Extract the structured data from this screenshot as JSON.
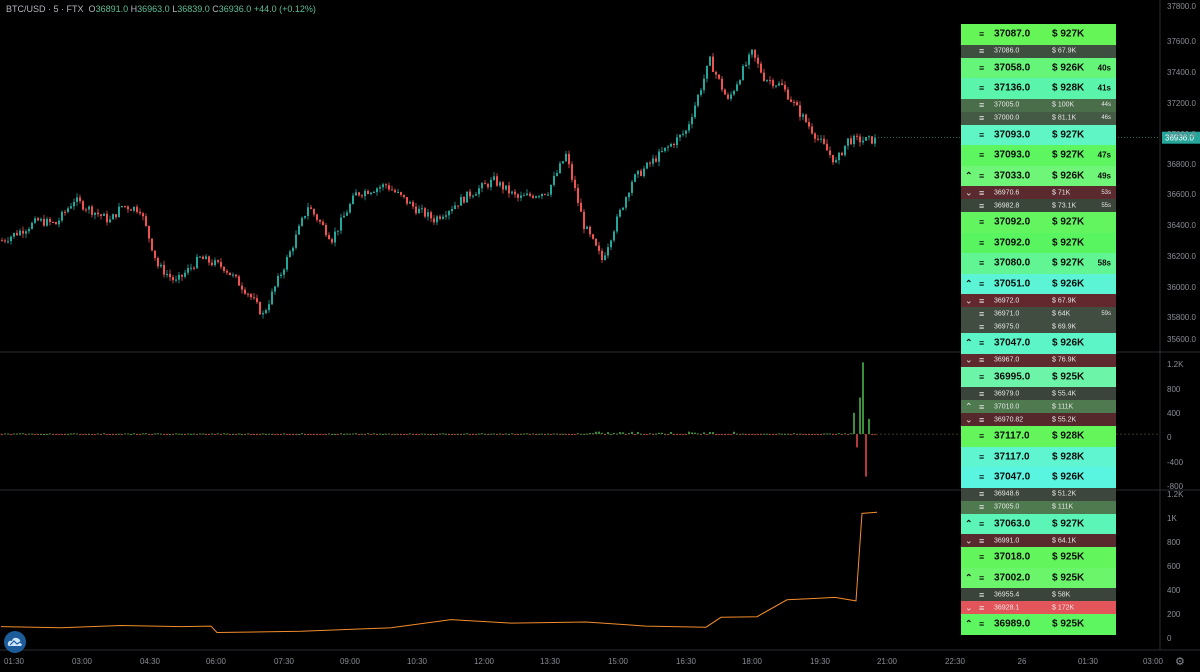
{
  "header": {
    "symbol": "BTC/USD",
    "interval": "5",
    "exchange": "FTX",
    "o_label": "O",
    "o": "36891.0",
    "h_label": "H",
    "h": "36963.0",
    "l_label": "L",
    "l": "36839.0",
    "c_label": "C",
    "c": "36936.0",
    "change": "+44.0 (+0.12%)"
  },
  "chart_data": [
    {
      "type": "candlestick",
      "name": "price",
      "y_ticks": [
        "37800.0",
        "37600.0",
        "37400.0",
        "37200.0",
        "37000.0",
        "36800.0",
        "36600.0",
        "36400.0",
        "36200.0",
        "36000.0",
        "35800.0",
        "35600.0"
      ],
      "ylim": [
        35530,
        37830
      ],
      "last_price": "36936.0",
      "anchors": [
        [
          0,
          36250
        ],
        [
          6,
          36310
        ],
        [
          12,
          36380
        ],
        [
          18,
          36360
        ],
        [
          24,
          36520
        ],
        [
          36,
          36380
        ],
        [
          40,
          36480
        ],
        [
          46,
          36460
        ],
        [
          52,
          36080
        ],
        [
          58,
          35970
        ],
        [
          66,
          36130
        ],
        [
          74,
          36070
        ],
        [
          82,
          35900
        ],
        [
          87,
          35750
        ],
        [
          96,
          36170
        ],
        [
          102,
          36480
        ],
        [
          110,
          36260
        ],
        [
          118,
          36560
        ],
        [
          128,
          36620
        ],
        [
          138,
          36460
        ],
        [
          144,
          36390
        ],
        [
          156,
          36560
        ],
        [
          164,
          36650
        ],
        [
          172,
          36530
        ],
        [
          182,
          36580
        ],
        [
          188,
          36820
        ],
        [
          194,
          36350
        ],
        [
          200,
          36120
        ],
        [
          210,
          36650
        ],
        [
          218,
          36800
        ],
        [
          228,
          36980
        ],
        [
          236,
          37450
        ],
        [
          242,
          37180
        ],
        [
          246,
          37350
        ],
        [
          250,
          37500
        ],
        [
          254,
          37340
        ],
        [
          260,
          37280
        ],
        [
          266,
          37100
        ],
        [
          272,
          36930
        ],
        [
          278,
          36770
        ],
        [
          282,
          36920
        ]
      ],
      "colors": {
        "up": "#26a69a",
        "down": "#ef5350"
      }
    },
    {
      "type": "bar",
      "name": "volume-delta",
      "y_ticks": [
        "1.2K",
        "800",
        "400",
        "0",
        "-400",
        "-800"
      ],
      "ylim": [
        -920,
        1350
      ]
    },
    {
      "type": "line",
      "name": "cumulative",
      "y_ticks": [
        "1.2K",
        "1K",
        "800",
        "600",
        "400",
        "200",
        "0"
      ],
      "ylim": [
        -120,
        1250
      ],
      "color": "#f48c2c",
      "points": [
        [
          0,
          80
        ],
        [
          20,
          70
        ],
        [
          40,
          90
        ],
        [
          60,
          80
        ],
        [
          70,
          85
        ],
        [
          72,
          30
        ],
        [
          100,
          40
        ],
        [
          130,
          70
        ],
        [
          150,
          140
        ],
        [
          170,
          110
        ],
        [
          195,
          120
        ],
        [
          215,
          85
        ],
        [
          235,
          75
        ],
        [
          240,
          160
        ],
        [
          252,
          165
        ],
        [
          262,
          310
        ],
        [
          270,
          320
        ],
        [
          278,
          330
        ],
        [
          285,
          300
        ],
        [
          287,
          1050
        ],
        [
          292,
          1060
        ]
      ]
    }
  ],
  "x_axis": [
    "01:30",
    "03:00",
    "04:30",
    "06:00",
    "07:30",
    "09:00",
    "10:30",
    "12:00",
    "13:30",
    "15:00",
    "16:30",
    "18:00",
    "19:30",
    "21:00",
    "22:30",
    "26",
    "01:30",
    "03:00"
  ],
  "feed": [
    {
      "size": "big",
      "arrow": "",
      "price": "37087.0",
      "amount": "$ 927K",
      "age": "",
      "bg": "#65f557"
    },
    {
      "size": "small",
      "arrow": "",
      "price": "37086.0",
      "amount": "$ 67.9K",
      "age": "",
      "bg": "#3f4f3f"
    },
    {
      "size": "big",
      "arrow": "",
      "price": "37058.0",
      "amount": "$ 926K",
      "age": "40s",
      "bg": "#65f579"
    },
    {
      "size": "big",
      "arrow": "",
      "price": "37136.0",
      "amount": "$ 928K",
      "age": "41s",
      "bg": "#5af5aa"
    },
    {
      "size": "small",
      "arrow": "",
      "price": "37005.0",
      "amount": "$ 100K",
      "age": "44s",
      "bg": "#4a6e4a"
    },
    {
      "size": "small",
      "arrow": "",
      "price": "37000.0",
      "amount": "$ 81.1K",
      "age": "46s",
      "bg": "#455a45"
    },
    {
      "size": "big",
      "arrow": "",
      "price": "37093.0",
      "amount": "$ 927K",
      "age": "",
      "bg": "#60f5c5"
    },
    {
      "size": "big",
      "arrow": "",
      "price": "37093.0",
      "amount": "$ 927K",
      "age": "47s",
      "bg": "#5df560"
    },
    {
      "size": "big",
      "arrow": "^",
      "price": "37033.0",
      "amount": "$ 926K",
      "age": "49s",
      "bg": "#6ff577"
    },
    {
      "size": "small",
      "arrow": "v",
      "price": "36970.6",
      "amount": "$ 71K",
      "age": "53s",
      "bg": "#5a2a2e"
    },
    {
      "size": "small",
      "arrow": "",
      "price": "36982.8",
      "amount": "$ 73.1K",
      "age": "55s",
      "bg": "#3a463a"
    },
    {
      "size": "big",
      "arrow": "",
      "price": "37092.0",
      "amount": "$ 927K",
      "age": "",
      "bg": "#63f55f"
    },
    {
      "size": "big",
      "arrow": "",
      "price": "37092.0",
      "amount": "$ 927K",
      "age": "",
      "bg": "#59f560"
    },
    {
      "size": "big",
      "arrow": "",
      "price": "37080.0",
      "amount": "$ 927K",
      "age": "58s",
      "bg": "#61f594"
    },
    {
      "size": "big",
      "arrow": "^",
      "price": "37051.0",
      "amount": "$ 926K",
      "age": "",
      "bg": "#5bf5d6"
    },
    {
      "size": "small",
      "arrow": "v",
      "price": "36972.0",
      "amount": "$ 67.9K",
      "age": "",
      "bg": "#62282e"
    },
    {
      "size": "small",
      "arrow": "",
      "price": "36971.0",
      "amount": "$ 64K",
      "age": "59s",
      "bg": "#404d40"
    },
    {
      "size": "small",
      "arrow": "",
      "price": "36975.0",
      "amount": "$ 69.9K",
      "age": "",
      "bg": "#404d40"
    },
    {
      "size": "big",
      "arrow": "^",
      "price": "37047.0",
      "amount": "$ 926K",
      "age": "",
      "bg": "#5bf5c8"
    },
    {
      "size": "small",
      "arrow": "v",
      "price": "36967.0",
      "amount": "$ 76.9K",
      "age": "",
      "bg": "#5e2a2e"
    },
    {
      "size": "big",
      "arrow": "",
      "price": "36995.0",
      "amount": "$ 925K",
      "age": "",
      "bg": "#6cf5a8"
    },
    {
      "size": "small",
      "arrow": "",
      "price": "36979.0",
      "amount": "$ 55.4K",
      "age": "",
      "bg": "#3a443a"
    },
    {
      "size": "small",
      "arrow": "^",
      "price": "37010.0",
      "amount": "$ 111K",
      "age": "",
      "bg": "#4f7a4f"
    },
    {
      "size": "small",
      "arrow": "v",
      "price": "36970.82",
      "amount": "$ 55.2K",
      "age": "",
      "bg": "#55282c"
    },
    {
      "size": "big",
      "arrow": "",
      "price": "37117.0",
      "amount": "$ 928K",
      "age": "",
      "bg": "#63f55a"
    },
    {
      "size": "big",
      "arrow": "",
      "price": "37117.0",
      "amount": "$ 928K",
      "age": "",
      "bg": "#5ff5d0"
    },
    {
      "size": "big",
      "arrow": "",
      "price": "37047.0",
      "amount": "$ 926K",
      "age": "",
      "bg": "#5af5e0"
    },
    {
      "size": "small",
      "arrow": "",
      "price": "36948.6",
      "amount": "$ 51.2K",
      "age": "",
      "bg": "#3c463c"
    },
    {
      "size": "small",
      "arrow": "",
      "price": "37005.0",
      "amount": "$ 111K",
      "age": "",
      "bg": "#4f7a4f"
    },
    {
      "size": "big",
      "arrow": "^",
      "price": "37063.0",
      "amount": "$ 927K",
      "age": "",
      "bg": "#5bf5b8"
    },
    {
      "size": "small",
      "arrow": "v",
      "price": "36991.0",
      "amount": "$ 64.1K",
      "age": "",
      "bg": "#582a2e"
    },
    {
      "size": "big",
      "arrow": "",
      "price": "37018.0",
      "amount": "$ 925K",
      "age": "",
      "bg": "#62f55c"
    },
    {
      "size": "big",
      "arrow": "^",
      "price": "37002.0",
      "amount": "$ 925K",
      "age": "",
      "bg": "#6af56a"
    },
    {
      "size": "small",
      "arrow": "",
      "price": "36955.4",
      "amount": "$ 58K",
      "age": "",
      "bg": "#3a443a"
    },
    {
      "size": "small",
      "arrow": "v",
      "price": "36928.1",
      "amount": "$ 172K",
      "age": "",
      "bg": "#e2555a"
    },
    {
      "size": "big",
      "arrow": "^",
      "price": "36989.0",
      "amount": "$ 925K",
      "age": "",
      "bg": "#5df560"
    }
  ]
}
